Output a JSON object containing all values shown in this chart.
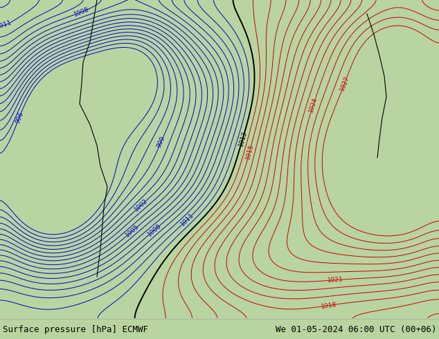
{
  "title_left": "Surface pressure [hPa] ECMWF",
  "title_right": "We 01-05-2024 06:00 UTC (00+06)",
  "bg_land_color": "#b8d4a0",
  "bg_ocean_color": "#c8e4c8",
  "label_color_blue": "#0000cc",
  "label_color_red": "#cc0000",
  "label_color_black": "#000000",
  "figsize": [
    6.34,
    4.9
  ],
  "dpi": 100,
  "bottom_bar_color": "#e8e8e8",
  "bottom_bar_height": 30
}
